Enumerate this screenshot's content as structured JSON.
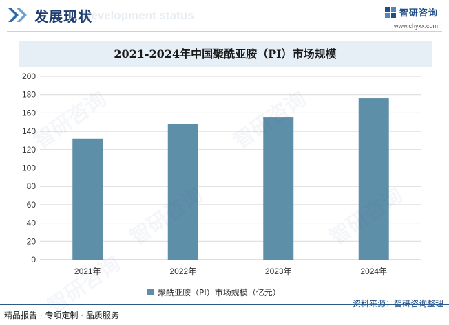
{
  "header": {
    "title": "发展现状",
    "ghost_text": "Development status",
    "brand_name": "智研咨询",
    "brand_url": "www.chyxx.com",
    "icon": "double-chevron-icon"
  },
  "watermark": "智研咨询",
  "chart_data": {
    "type": "bar",
    "title": "2021-2024年中国聚酰亚胺（PI）市场规模",
    "categories": [
      "2021年",
      "2022年",
      "2023年",
      "2024年"
    ],
    "series": [
      {
        "name": "聚酰亚胺（PI）市场规模（亿元）",
        "values": [
          132,
          148,
          155,
          176
        ]
      }
    ],
    "ylim": [
      0,
      200
    ],
    "yticks": [
      "0",
      "20",
      "40",
      "60",
      "80",
      "100",
      "120",
      "140",
      "160",
      "180",
      "200"
    ],
    "grid": true,
    "legend_position": "bottom",
    "colors": {
      "bar": "#5e8fa9",
      "grid": "#d9d9d9"
    }
  },
  "footer": {
    "left": "精品报告 · 专项定制 · 品质服务",
    "right": "资料来源：智研咨询整理"
  }
}
